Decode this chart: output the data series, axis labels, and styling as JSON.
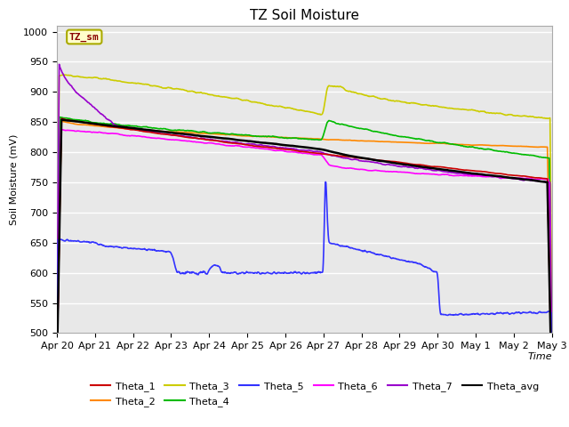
{
  "title": "TZ Soil Moisture",
  "xlabel": "Time",
  "ylabel": "Soil Moisture (mV)",
  "ylim": [
    500,
    1010
  ],
  "yticks": [
    500,
    550,
    600,
    650,
    700,
    750,
    800,
    850,
    900,
    950,
    1000
  ],
  "xlim": [
    0,
    13
  ],
  "xtick_labels": [
    "Apr 20",
    "Apr 21",
    "Apr 22",
    "Apr 23",
    "Apr 24",
    "Apr 25",
    "Apr 26",
    "Apr 27",
    "Apr 28",
    "Apr 29",
    "Apr 30",
    "May 1",
    "May 2",
    "May 3"
  ],
  "bg_color": "#e8e8e8",
  "grid_color": "#ffffff",
  "legend_box_color": "#ffffcc",
  "legend_box_edge": "#aaaa00",
  "legend_box_text": "#880000",
  "series": {
    "Theta_1": {
      "color": "#cc0000",
      "lw": 1.2
    },
    "Theta_2": {
      "color": "#ff8800",
      "lw": 1.2
    },
    "Theta_3": {
      "color": "#cccc00",
      "lw": 1.2
    },
    "Theta_4": {
      "color": "#00bb00",
      "lw": 1.2
    },
    "Theta_5": {
      "color": "#3333ff",
      "lw": 1.2
    },
    "Theta_6": {
      "color": "#ff00ff",
      "lw": 1.2
    },
    "Theta_7": {
      "color": "#9900cc",
      "lw": 1.2
    },
    "Theta_avg": {
      "color": "#000000",
      "lw": 1.8
    }
  }
}
